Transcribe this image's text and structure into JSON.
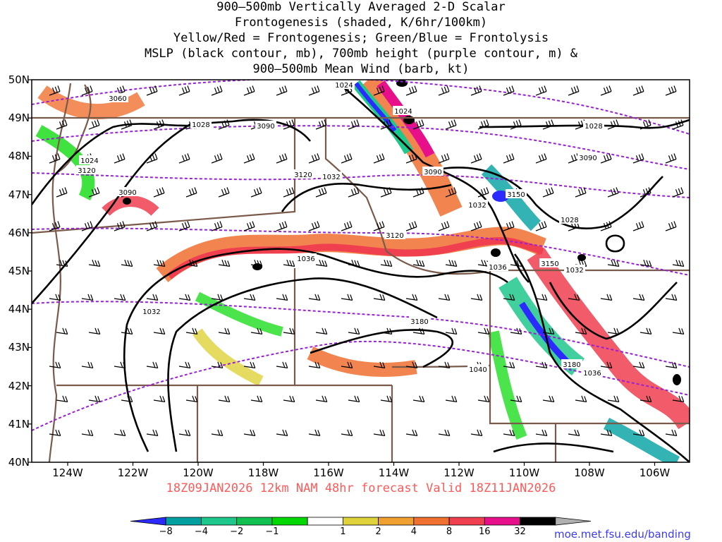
{
  "header": {
    "line1": "900–500mb Vertically Averaged 2-D Scalar",
    "line2": "Frontogenesis (shaded, K/6hr/100km)",
    "line3": "Yellow/Red = Frontogenesis;  Green/Blue = Frontolysis",
    "line4": "MSLP (black contour, mb), 700mb height (purple contour, m) &",
    "line5": "900–500mb Mean Wind (barb, kt)"
  },
  "valid_line": "18Z09JAN2026 12km NAM 48hr forecast Valid 18Z11JAN2026",
  "credit": "moe.met.fsu.edu/banding",
  "lat_labels": [
    "50N",
    "49N",
    "48N",
    "47N",
    "46N",
    "45N",
    "44N",
    "43N",
    "42N",
    "41N",
    "40N"
  ],
  "lon_labels": [
    "124W",
    "122W",
    "120W",
    "118W",
    "116W",
    "114W",
    "112W",
    "110W",
    "108W",
    "106W"
  ],
  "mslp_labels": [
    "1028",
    "1024",
    "1028",
    "1024",
    "1032",
    "1032",
    "1036",
    "1036",
    "1032",
    "1032",
    "1040",
    "1036",
    "1028",
    "1024"
  ],
  "height_labels": [
    "3060",
    "3090",
    "3090",
    "3120",
    "3120",
    "3150",
    "3120",
    "3090",
    "3150",
    "3180",
    "3180",
    "3090"
  ],
  "colorbar": {
    "labels": [
      "−8",
      "−4",
      "−2",
      "−1",
      "1",
      "2",
      "4",
      "8",
      "16",
      "32"
    ],
    "colors": [
      "#2b2bff",
      "#00a0a0",
      "#1ec78c",
      "#10c050",
      "#00d800",
      "#ffffff",
      "#e0d23a",
      "#f0a030",
      "#f07030",
      "#f04050",
      "#e8108a",
      "#000000",
      "#b0b0b0"
    ]
  },
  "colors": {
    "mslp": "#000000",
    "height": "#9b1fd6",
    "borders": "#7a5a4a",
    "valid_text": "#ff5a5a"
  }
}
